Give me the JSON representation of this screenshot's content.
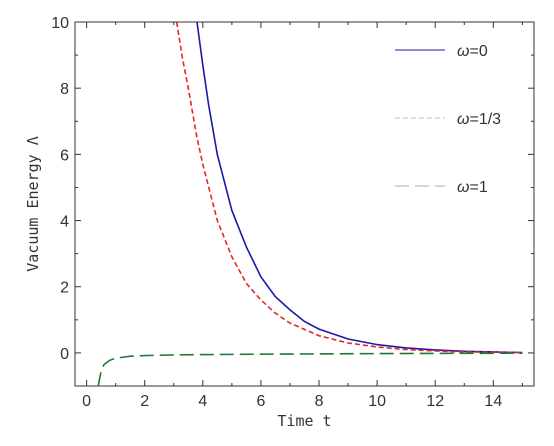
{
  "chart_data": {
    "type": "line",
    "title": "",
    "xlabel": "Time t",
    "ylabel": "Vacuum Energy Λ",
    "xlim": [
      -0.4,
      15.4
    ],
    "ylim": [
      -1,
      10
    ],
    "xticks": [
      0,
      2,
      4,
      6,
      8,
      10,
      12,
      14
    ],
    "yticks": [
      0,
      2,
      4,
      6,
      8,
      10
    ],
    "grid": false,
    "legend_position": "right",
    "series": [
      {
        "name": "ω=0",
        "legend_symbol": "ω",
        "legend_value": "=0",
        "color": "#1a1aa6",
        "dash": "solid",
        "x": [
          3.8,
          4.0,
          4.2,
          4.5,
          5.0,
          5.5,
          6.0,
          6.5,
          7.0,
          7.5,
          8.0,
          9.0,
          10.0,
          11.0,
          12.0,
          13.0,
          14.0,
          15.0
        ],
        "y": [
          10.0,
          8.7,
          7.5,
          6.0,
          4.3,
          3.2,
          2.3,
          1.7,
          1.3,
          0.95,
          0.72,
          0.42,
          0.25,
          0.15,
          0.09,
          0.05,
          0.03,
          0.01
        ]
      },
      {
        "name": "ω=1/3",
        "legend_symbol": "ω",
        "legend_value": "=1/3",
        "color": "#e8242b",
        "dash": "short",
        "x": [
          3.1,
          3.3,
          3.5,
          3.8,
          4.0,
          4.5,
          5.0,
          5.5,
          6.0,
          6.5,
          7.0,
          8.0,
          9.0,
          10.0,
          11.0,
          12.0,
          13.0,
          14.0,
          15.0
        ],
        "y": [
          10.0,
          8.9,
          8.0,
          6.5,
          5.7,
          4.0,
          2.9,
          2.1,
          1.6,
          1.2,
          0.9,
          0.52,
          0.3,
          0.18,
          0.1,
          0.06,
          0.03,
          0.02,
          0.01
        ]
      },
      {
        "name": "ω=1",
        "legend_symbol": "ω",
        "legend_value": "=1",
        "color": "#1f7a3a",
        "dash": "long",
        "x": [
          0.4,
          0.5,
          0.6,
          0.8,
          1.0,
          1.5,
          2.0,
          3.0,
          4.0,
          6.0,
          8.0,
          10.0,
          12.0,
          15.0
        ],
        "y": [
          -1.0,
          -0.55,
          -0.35,
          -0.22,
          -0.16,
          -0.1,
          -0.08,
          -0.06,
          -0.05,
          -0.04,
          -0.03,
          -0.02,
          -0.015,
          -0.01
        ]
      }
    ]
  }
}
